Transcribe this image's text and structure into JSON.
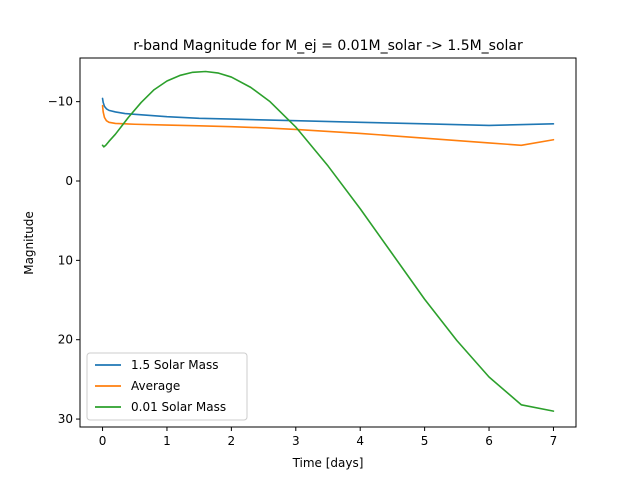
{
  "chart_data": {
    "type": "line",
    "title": "r-band Magnitude for M_ej = 0.01M_solar -> 1.5M_solar",
    "xlabel": "Time [days]",
    "ylabel": "Magnitude",
    "xlim": [
      -0.35,
      7.35
    ],
    "ylim": [
      31,
      -15.5
    ],
    "y_inverted": true,
    "xticks": [
      0,
      1,
      2,
      3,
      4,
      5,
      6,
      7
    ],
    "xtick_labels": [
      "0",
      "1",
      "2",
      "3",
      "4",
      "5",
      "6",
      "7"
    ],
    "yticks": [
      -10,
      0,
      10,
      20,
      30
    ],
    "ytick_labels": [
      "−10",
      "0",
      "10",
      "20",
      "30"
    ],
    "grid": false,
    "legend_position": "lower-left",
    "series": [
      {
        "name": "1.5 Solar Mass",
        "color": "#1f77b4",
        "x": [
          0.0,
          0.01,
          0.03,
          0.06,
          0.1,
          0.2,
          0.35,
          0.5,
          1.0,
          1.5,
          2.0,
          3.0,
          4.0,
          5.0,
          6.0,
          7.0
        ],
        "y": [
          -10.4,
          -9.9,
          -9.4,
          -9.1,
          -8.9,
          -8.7,
          -8.5,
          -8.4,
          -8.1,
          -7.9,
          -7.8,
          -7.6,
          -7.4,
          -7.2,
          -7.0,
          -7.2
        ]
      },
      {
        "name": "Average",
        "color": "#ff7f0e",
        "x": [
          0.0,
          0.01,
          0.03,
          0.06,
          0.1,
          0.2,
          0.35,
          0.5,
          1.0,
          1.5,
          2.0,
          2.5,
          3.0,
          3.5,
          4.0,
          4.5,
          5.0,
          5.5,
          6.0,
          6.5,
          7.0
        ],
        "y": [
          -9.5,
          -8.7,
          -8.0,
          -7.6,
          -7.4,
          -7.25,
          -7.2,
          -7.15,
          -7.05,
          -6.95,
          -6.85,
          -6.7,
          -6.5,
          -6.25,
          -6.0,
          -5.7,
          -5.4,
          -5.1,
          -4.8,
          -4.5,
          -5.2
        ]
      },
      {
        "name": "0.01 Solar Mass",
        "color": "#2ca02c",
        "x": [
          0.0,
          0.02,
          0.05,
          0.1,
          0.2,
          0.4,
          0.6,
          0.8,
          1.0,
          1.2,
          1.4,
          1.6,
          1.8,
          2.0,
          2.3,
          2.6,
          3.0,
          3.5,
          4.0,
          4.5,
          5.0,
          5.5,
          6.0,
          6.5,
          7.0
        ],
        "y": [
          -4.5,
          -4.3,
          -4.5,
          -5.0,
          -5.9,
          -8.0,
          -9.9,
          -11.5,
          -12.6,
          -13.3,
          -13.7,
          -13.8,
          -13.6,
          -13.1,
          -11.8,
          -10.0,
          -6.8,
          -1.9,
          3.5,
          9.2,
          14.9,
          20.1,
          24.7,
          28.2,
          29.0
        ]
      }
    ]
  }
}
